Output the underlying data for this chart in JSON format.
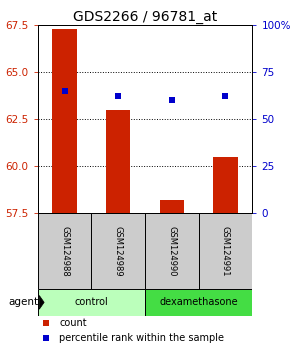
{
  "title": "GDS2266 / 96781_at",
  "samples": [
    "GSM124988",
    "GSM124989",
    "GSM124990",
    "GSM124991"
  ],
  "bar_values": [
    67.3,
    63.0,
    58.2,
    60.5
  ],
  "percentile_values": [
    64.0,
    63.7,
    63.5,
    63.7
  ],
  "ylim_left": [
    57.5,
    67.5
  ],
  "yticks_left": [
    57.5,
    60.0,
    62.5,
    65.0,
    67.5
  ],
  "ylim_right": [
    0,
    100
  ],
  "yticks_right": [
    0,
    25,
    50,
    75,
    100
  ],
  "ytick_labels_right": [
    "0",
    "25",
    "50",
    "75",
    "100%"
  ],
  "bar_color": "#cc2200",
  "percentile_color": "#0000cc",
  "groups": [
    {
      "label": "control",
      "indices": [
        0,
        1
      ],
      "color": "#bbffbb"
    },
    {
      "label": "dexamethasone",
      "indices": [
        2,
        3
      ],
      "color": "#44dd44"
    }
  ],
  "agent_label": "agent",
  "sample_box_color": "#cccccc",
  "title_fontsize": 10,
  "tick_fontsize": 7.5,
  "legend_fontsize": 7
}
